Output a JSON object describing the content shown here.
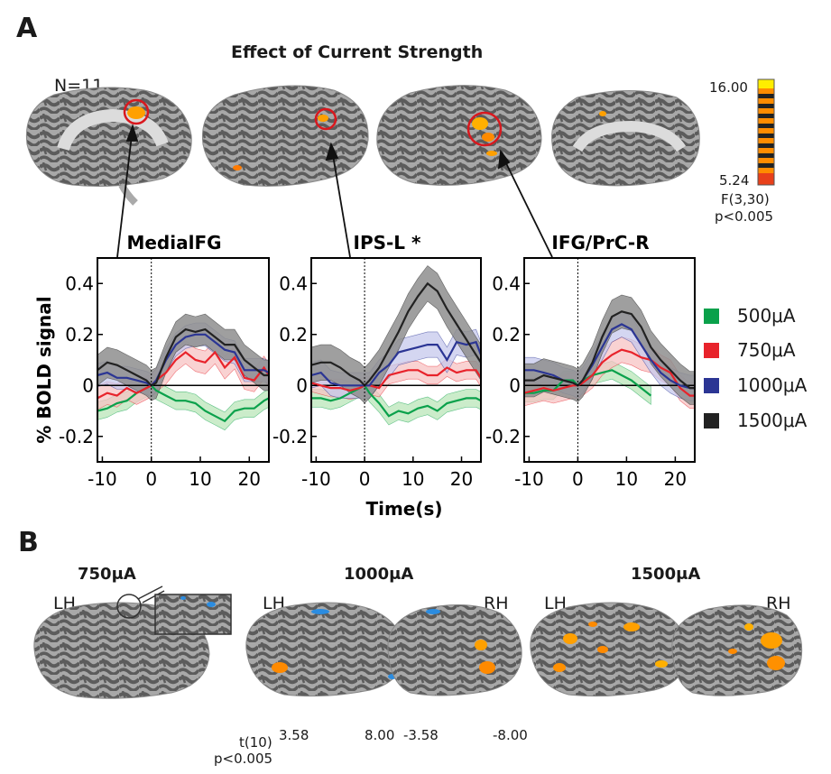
{
  "panel_a": {
    "letter": "A",
    "title": "Effect of Current Strength",
    "n_label": "N=11",
    "colorbar": {
      "max": "16.00",
      "min": "5.24",
      "stat": "F(3,30)",
      "p": "p<0.005"
    }
  },
  "panel_b": {
    "letter": "B",
    "conditions": [
      "750μA",
      "1000μA",
      "1500μA"
    ],
    "hemi": {
      "left": "LH",
      "right": "RH"
    },
    "colorbar": {
      "stat": "t(10)",
      "p": "p<0.005",
      "pos_min": "3.58",
      "pos_max": "8.00",
      "neg_min": "-3.58",
      "neg_max": "-8.00"
    }
  },
  "legend": [
    {
      "label": "500μA",
      "color": "#0aa14b"
    },
    {
      "label": "750μA",
      "color": "#e8232b"
    },
    {
      "label": "1000μA",
      "color": "#2b3594"
    },
    {
      "label": "1500μA",
      "color": "#222222"
    }
  ],
  "colors": {
    "hot_dark": "#ee3b1a",
    "hot_light": "#ffd800",
    "cold_dark": "#1b2a8e",
    "cold_light": "#4ec24a"
  },
  "chart_data": {
    "type": "line",
    "ylabel": "% BOLD signal",
    "xlabel": "Time(s)",
    "xlim": [
      -11,
      24
    ],
    "ylim": [
      -0.3,
      0.5
    ],
    "xticks": [
      -10,
      0,
      10,
      20
    ],
    "yticks": [
      0.4,
      0.2,
      0,
      -0.2
    ],
    "ytick_labels": [
      "0.4",
      "0.2",
      "0",
      "-0.2"
    ],
    "x": [
      -11,
      -9,
      -7,
      -5,
      -3,
      -1,
      0,
      1,
      3,
      5,
      7,
      9,
      11,
      13,
      15,
      17,
      19,
      21,
      23,
      24
    ],
    "panels": [
      {
        "title": "MedialFG",
        "series": [
          {
            "name": "500μA",
            "values": [
              -0.1,
              -0.09,
              -0.07,
              -0.06,
              -0.03,
              -0.01,
              0.0,
              -0.02,
              -0.04,
              -0.06,
              -0.06,
              -0.07,
              -0.1,
              -0.12,
              -0.14,
              -0.1,
              -0.09,
              -0.09,
              -0.06,
              -0.05
            ],
            "err": 0.035
          },
          {
            "name": "750μA",
            "values": [
              -0.05,
              -0.03,
              -0.04,
              -0.01,
              -0.03,
              -0.01,
              0.0,
              0.02,
              0.05,
              0.1,
              0.13,
              0.1,
              0.09,
              0.13,
              0.07,
              0.11,
              0.03,
              0.02,
              0.07,
              0.04
            ],
            "err": 0.045
          },
          {
            "name": "1000μA",
            "values": [
              0.04,
              0.05,
              0.03,
              0.03,
              0.02,
              0.01,
              0.0,
              0.02,
              0.1,
              0.16,
              0.19,
              0.2,
              0.2,
              0.17,
              0.14,
              0.13,
              0.06,
              0.06,
              0.06,
              0.05
            ],
            "err": 0.045
          },
          {
            "name": "1500μA",
            "values": [
              0.06,
              0.09,
              0.08,
              0.06,
              0.04,
              0.02,
              0.0,
              0.01,
              0.11,
              0.19,
              0.22,
              0.21,
              0.22,
              0.19,
              0.16,
              0.16,
              0.1,
              0.07,
              0.04,
              0.04
            ],
            "err": 0.06
          }
        ]
      },
      {
        "title": "IPS-L *",
        "series": [
          {
            "name": "500μA",
            "values": [
              -0.05,
              -0.05,
              -0.06,
              -0.05,
              -0.03,
              -0.01,
              0.0,
              -0.03,
              -0.07,
              -0.12,
              -0.1,
              -0.11,
              -0.09,
              -0.08,
              -0.1,
              -0.07,
              -0.06,
              -0.05,
              -0.05,
              -0.06
            ],
            "err": 0.035
          },
          {
            "name": "750μA",
            "values": [
              0.01,
              0.0,
              -0.01,
              -0.01,
              -0.02,
              -0.01,
              0.0,
              0.0,
              -0.01,
              0.04,
              0.05,
              0.06,
              0.06,
              0.04,
              0.04,
              0.07,
              0.05,
              0.06,
              0.06,
              0.03
            ],
            "err": 0.035
          },
          {
            "name": "1000μA",
            "values": [
              0.04,
              0.05,
              0.01,
              0.0,
              0.0,
              0.0,
              0.0,
              0.0,
              0.05,
              0.08,
              0.13,
              0.14,
              0.15,
              0.16,
              0.16,
              0.1,
              0.17,
              0.16,
              0.17,
              0.12
            ],
            "err": 0.05
          },
          {
            "name": "1500μA",
            "values": [
              0.08,
              0.09,
              0.09,
              0.07,
              0.04,
              0.02,
              0.0,
              0.02,
              0.07,
              0.14,
              0.21,
              0.29,
              0.35,
              0.4,
              0.37,
              0.3,
              0.24,
              0.18,
              0.12,
              0.09
            ],
            "err": 0.07
          }
        ]
      },
      {
        "title": "IFG/PrC-R",
        "series": [
          {
            "name": "500μA",
            "values": [
              -0.03,
              -0.03,
              -0.02,
              -0.02,
              0.02,
              0.02,
              0.0,
              0.02,
              0.04,
              0.05,
              0.06,
              0.04,
              0.02,
              -0.01,
              -0.04,
              null,
              null,
              null,
              null,
              null
            ],
            "err": 0.035
          },
          {
            "name": "750μA",
            "values": [
              -0.03,
              -0.02,
              -0.01,
              -0.02,
              -0.01,
              0.0,
              0.0,
              0.01,
              0.04,
              0.09,
              0.12,
              0.14,
              0.13,
              0.11,
              0.1,
              0.07,
              0.05,
              -0.01,
              -0.04,
              -0.04
            ],
            "err": 0.05
          },
          {
            "name": "1000μA",
            "values": [
              0.06,
              0.06,
              0.05,
              0.04,
              0.02,
              0.01,
              0.0,
              0.02,
              0.08,
              0.15,
              0.22,
              0.24,
              0.22,
              0.16,
              0.1,
              0.05,
              0.02,
              0.0,
              -0.01,
              -0.01
            ],
            "err": 0.05
          },
          {
            "name": "1500μA",
            "values": [
              0.02,
              0.02,
              0.04,
              0.03,
              0.02,
              0.01,
              0.0,
              0.02,
              0.09,
              0.19,
              0.27,
              0.29,
              0.28,
              0.23,
              0.15,
              0.1,
              0.06,
              0.02,
              -0.01,
              -0.01
            ],
            "err": 0.065
          }
        ]
      }
    ]
  }
}
